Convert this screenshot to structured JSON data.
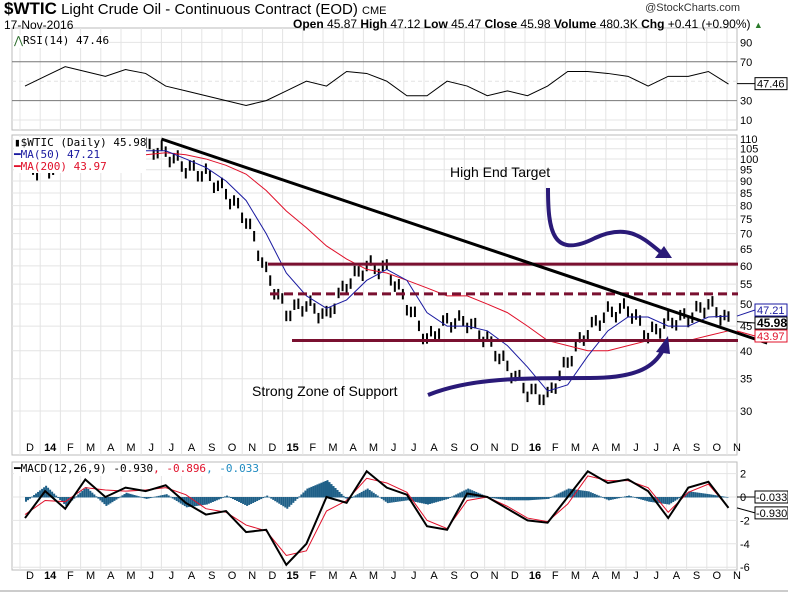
{
  "header": {
    "symbol": "$WTIC",
    "name": "Light Crude Oil - Continuous Contract (EOD)",
    "exchange": "CME",
    "date": "17-Nov-2016",
    "watermark": "@StockCharts.com",
    "open_label": "Open",
    "open": "45.87",
    "high_label": "High",
    "high": "47.12",
    "low_label": "Low",
    "low": "45.47",
    "close_label": "Close",
    "close": "45.98",
    "volume_label": "Volume",
    "volume": "480.3K",
    "chg_label": "Chg",
    "chg": "+0.41 (+0.90%)",
    "up_icon": "triangle-up"
  },
  "colors": {
    "price": "#000000",
    "ma50": "#1a1aa0",
    "ma200": "#e0102a",
    "trend": "#000000",
    "levels": "#7a1030",
    "arrows": "#2a1a78",
    "macd_hist": "#1f6088",
    "rsi_fill": "#8a6a6a"
  },
  "rsi": {
    "label": "RSI(14) 47.46",
    "current": "47.46",
    "ticks": [
      "90",
      "70",
      "30",
      "10"
    ]
  },
  "main": {
    "legend": "$WTIC (Daily) 45.98",
    "ma50_label": "MA(50) 47.21",
    "ma200_label": "MA(200) 43.97",
    "tag_ma50": "47.21",
    "tag_close": "45.98",
    "tag_ma200": "43.97",
    "annotation_target": "High End Target",
    "annotation_support": "Strong Zone of Support",
    "price_ticks": [
      "110",
      "105",
      "100",
      "95",
      "90",
      "85",
      "80",
      "75",
      "70",
      "65",
      "60",
      "55",
      "50",
      "45",
      "40",
      "35",
      "30"
    ]
  },
  "macd": {
    "label": "MACD(12,26,9) -0.930",
    "signal_val": ", -0.896",
    "hist_val": ", -0.033",
    "tag_hist": "-0.033",
    "tag_macd": "-0.930",
    "ticks": [
      "2",
      "0",
      "-2",
      "-4",
      "-6"
    ]
  },
  "chart_data": {
    "type": "line",
    "title": "$WTIC Light Crude Oil - Continuous Contract (EOD)",
    "months": [
      "D",
      "14",
      "F",
      "M",
      "A",
      "M",
      "J",
      "J",
      "A",
      "S",
      "O",
      "N",
      "D",
      "15",
      "F",
      "M",
      "A",
      "M",
      "J",
      "J",
      "A",
      "S",
      "O",
      "N",
      "D",
      "16",
      "F",
      "M",
      "A",
      "M",
      "J",
      "J",
      "A",
      "S",
      "O",
      "N"
    ],
    "price_ylim": [
      27,
      110
    ],
    "price_scale": "log",
    "price": [
      97,
      94,
      101,
      101,
      100,
      103,
      106,
      103,
      96,
      93,
      85,
      75,
      58,
      48,
      50,
      47,
      55,
      60,
      59,
      50,
      42,
      46,
      46,
      42,
      37,
      33,
      32,
      38,
      44,
      48,
      49,
      43,
      46,
      47,
      50,
      46
    ],
    "ma50": [
      95,
      96,
      98,
      100,
      101,
      102,
      104,
      104,
      100,
      96,
      90,
      82,
      70,
      58,
      52,
      49,
      51,
      56,
      59,
      56,
      48,
      45,
      45,
      44,
      41,
      37,
      33,
      34,
      39,
      44,
      47,
      47,
      45,
      45,
      47,
      47.2
    ],
    "ma200": [
      98,
      99,
      99,
      100,
      101,
      101,
      102,
      103,
      102,
      100,
      97,
      93,
      86,
      78,
      72,
      66,
      62,
      59,
      58,
      56,
      54,
      52,
      52,
      50,
      48,
      45,
      42,
      41,
      40,
      40,
      41,
      42,
      42,
      42,
      43,
      44
    ],
    "rsi": [
      45,
      55,
      65,
      60,
      55,
      62,
      58,
      45,
      40,
      35,
      30,
      25,
      30,
      40,
      50,
      45,
      60,
      58,
      50,
      35,
      35,
      50,
      45,
      35,
      40,
      35,
      45,
      60,
      60,
      58,
      55,
      45,
      55,
      55,
      60,
      47
    ],
    "macd": [
      -1.8,
      0.5,
      -1,
      1.5,
      0,
      0.8,
      0.5,
      1,
      -0.5,
      -1.5,
      -1.2,
      -3,
      -2.8,
      -5.8,
      -4,
      0,
      -0.5,
      2.2,
      0.8,
      0.2,
      -2.5,
      -2.8,
      0.3,
      0,
      -1,
      -2,
      -2.2,
      0,
      2.2,
      1.2,
      1.5,
      0.5,
      -1.8,
      0.8,
      1.3,
      -0.93
    ],
    "signal": [
      -1.5,
      -0.3,
      -0.4,
      0.8,
      0.6,
      0.5,
      0.6,
      0.8,
      0.2,
      -1,
      -1.3,
      -2.4,
      -2.9,
      -5,
      -4.6,
      -1.2,
      -0.3,
      1.6,
      1.2,
      0.4,
      -2,
      -2.7,
      -0.3,
      0,
      -0.8,
      -1.8,
      -2.1,
      -0.6,
      1.8,
      1.4,
      1.4,
      0.8,
      -1.3,
      0.4,
      1.1,
      -0.9
    ],
    "levels": [
      {
        "name": "target",
        "value": 60.5
      },
      {
        "name": "resistance",
        "value": 52.5,
        "style": "dashed"
      },
      {
        "name": "support",
        "value": 42
      }
    ],
    "downtrend": {
      "from": {
        "month": 7,
        "price": 110
      },
      "to": {
        "month": 36,
        "price": 41.5
      }
    }
  }
}
